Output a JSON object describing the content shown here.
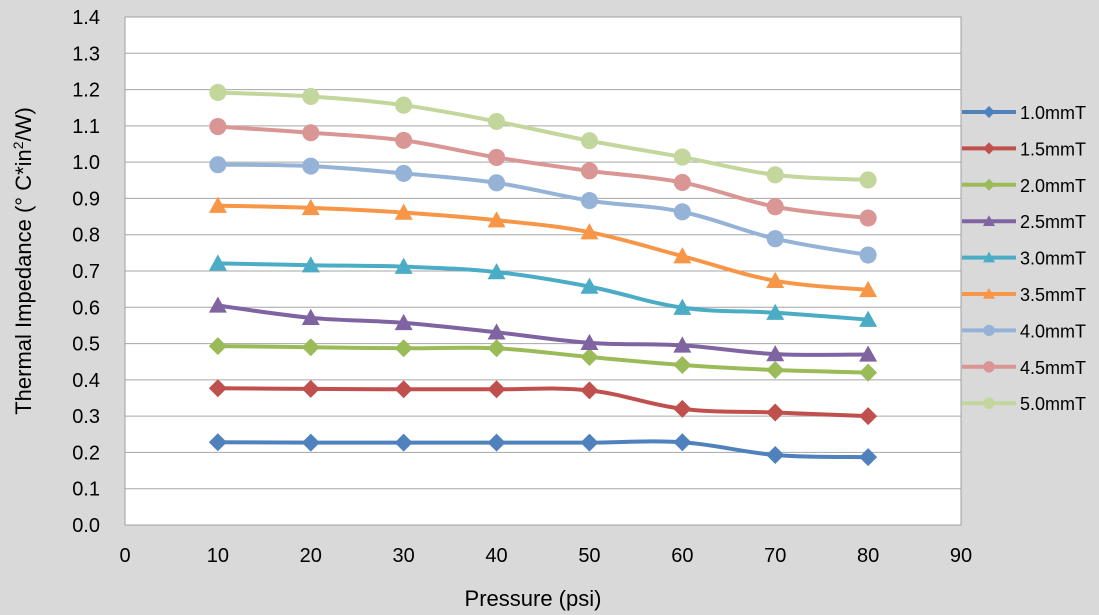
{
  "chart_data": {
    "type": "line",
    "title": "",
    "xlabel": "Pressure (psi)",
    "ylabel_parts": {
      "pre": "Thermal Impedance (° C*in",
      "sup": "2",
      "post": "/W)"
    },
    "xlim": [
      0,
      90
    ],
    "ylim": [
      0,
      1.4
    ],
    "x_ticks": [
      "0",
      "10",
      "20",
      "30",
      "40",
      "50",
      "60",
      "70",
      "80",
      "90"
    ],
    "y_ticks": [
      "0.0",
      "0.1",
      "0.2",
      "0.3",
      "0.4",
      "0.5",
      "0.6",
      "0.7",
      "0.8",
      "0.9",
      "1.0",
      "1.1",
      "1.2",
      "1.3",
      "1.4"
    ],
    "grid": "horizontal",
    "legend_position": "right",
    "x": [
      10,
      20,
      30,
      40,
      50,
      60,
      70,
      80
    ],
    "series": [
      {
        "name": "1.0mmT",
        "color": "#4f81bd",
        "marker": "diamond",
        "values": [
          0.228,
          0.227,
          0.227,
          0.227,
          0.227,
          0.228,
          0.193,
          0.187
        ]
      },
      {
        "name": "1.5mmT",
        "color": "#c0504d",
        "marker": "diamond",
        "values": [
          0.377,
          0.375,
          0.374,
          0.374,
          0.371,
          0.32,
          0.31,
          0.3
        ]
      },
      {
        "name": "2.0mmT",
        "color": "#9bbb59",
        "marker": "diamond",
        "values": [
          0.493,
          0.49,
          0.487,
          0.487,
          0.463,
          0.441,
          0.427,
          0.42
        ]
      },
      {
        "name": "2.5mmT",
        "color": "#8064a2",
        "marker": "triangle",
        "values": [
          0.605,
          0.571,
          0.557,
          0.531,
          0.502,
          0.495,
          0.471,
          0.47
        ]
      },
      {
        "name": "3.0mmT",
        "color": "#4bacc6",
        "marker": "triangle",
        "values": [
          0.721,
          0.716,
          0.712,
          0.697,
          0.657,
          0.599,
          0.585,
          0.566
        ]
      },
      {
        "name": "3.5mmT",
        "color": "#f79646",
        "marker": "triangle",
        "values": [
          0.88,
          0.874,
          0.861,
          0.84,
          0.807,
          0.741,
          0.673,
          0.648
        ]
      },
      {
        "name": "4.0mmT",
        "color": "#95b3d7",
        "marker": "circle",
        "values": [
          0.993,
          0.989,
          0.969,
          0.943,
          0.894,
          0.863,
          0.789,
          0.744
        ]
      },
      {
        "name": "4.5mmT",
        "color": "#d99694",
        "marker": "circle",
        "values": [
          1.098,
          1.081,
          1.06,
          1.013,
          0.976,
          0.944,
          0.877,
          0.846
        ]
      },
      {
        "name": "5.0mmT",
        "color": "#c3d69b",
        "marker": "circle",
        "values": [
          1.192,
          1.181,
          1.157,
          1.112,
          1.059,
          1.014,
          0.965,
          0.951
        ]
      }
    ]
  }
}
